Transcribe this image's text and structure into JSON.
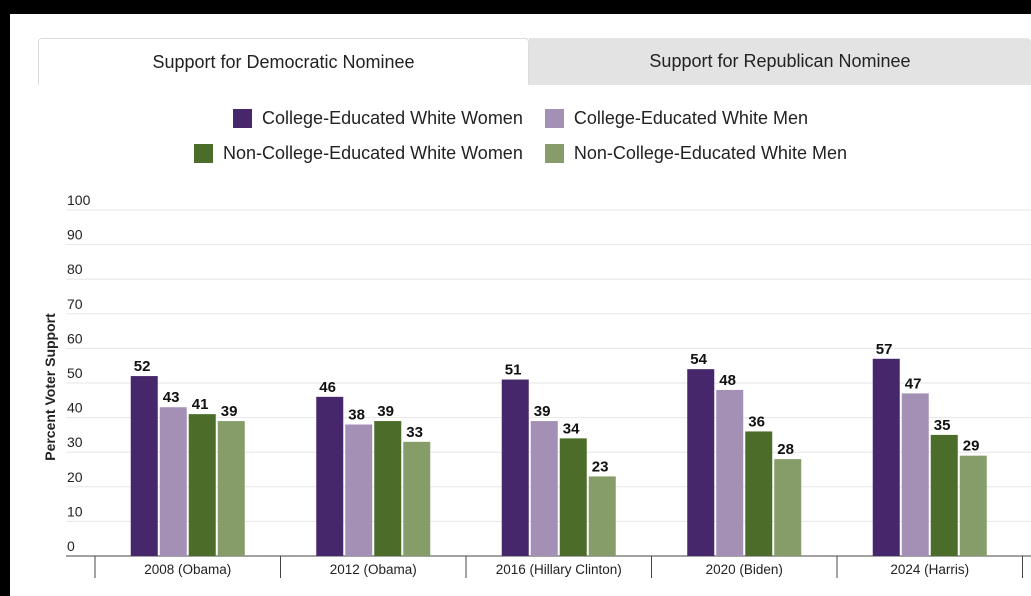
{
  "tabs": [
    {
      "label": "Support for Democratic Nominee",
      "active": true
    },
    {
      "label": "Support for Republican Nominee",
      "active": false
    }
  ],
  "colors": {
    "college_women": "#46276b",
    "college_men": "#a48fb5",
    "noncollege_women": "#4c6d2a",
    "noncollege_men": "#869d69",
    "grid": "#e6e6e6",
    "axis": "#444444"
  },
  "chart_data": {
    "type": "bar",
    "title": "",
    "xlabel": "",
    "ylabel": "Percent Voter Support",
    "ylim": [
      0,
      100
    ],
    "yticks": [
      0,
      10,
      20,
      30,
      40,
      50,
      60,
      70,
      80,
      90,
      100
    ],
    "grid": true,
    "legend_position": "top",
    "categories": [
      "2008 (Obama)",
      "2012 (Obama)",
      "2016 (Hillary Clinton)",
      "2020 (Biden)",
      "2024 (Harris)"
    ],
    "series": [
      {
        "name": "College-Educated White Women",
        "color": "#46276b",
        "values": [
          52,
          46,
          51,
          54,
          57
        ]
      },
      {
        "name": "College-Educated White Men",
        "color": "#a48fb5",
        "values": [
          43,
          38,
          39,
          48,
          47
        ]
      },
      {
        "name": "Non-College-Educated White Women",
        "color": "#4c6d2a",
        "values": [
          41,
          39,
          34,
          36,
          35
        ]
      },
      {
        "name": "Non-College-Educated White Men",
        "color": "#869d69",
        "values": [
          39,
          33,
          23,
          28,
          29
        ]
      }
    ]
  }
}
